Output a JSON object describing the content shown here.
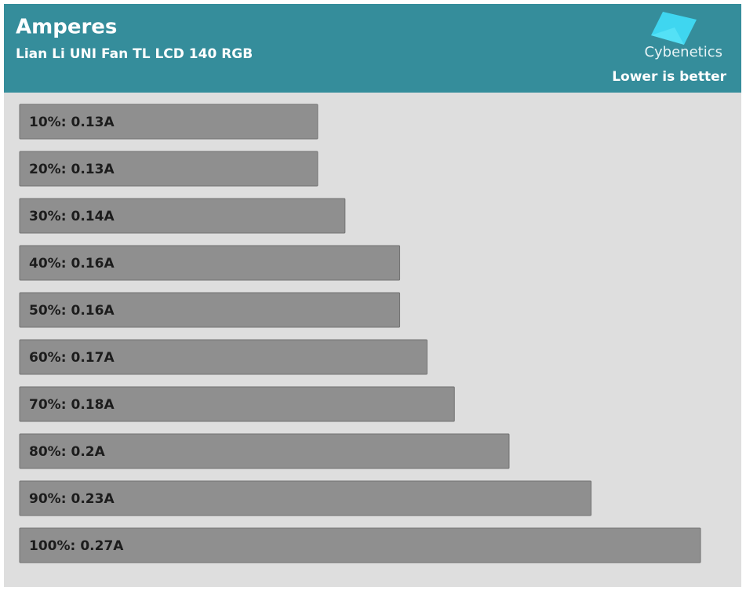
{
  "chart_data": {
    "type": "bar",
    "orientation": "horizontal",
    "title": "Amperes",
    "subtitle": "Lian Li UNI Fan TL LCD 140 RGB",
    "note": "Lower is better",
    "logo": "Cybenetics",
    "categories": [
      "10%:",
      "20%:",
      "30%:",
      "40%:",
      "50%:",
      "60%:",
      "70%:",
      "80%:",
      "90%:",
      "100%:"
    ],
    "values": [
      0.13,
      0.13,
      0.14,
      0.16,
      0.16,
      0.17,
      0.18,
      0.2,
      0.23,
      0.27
    ],
    "value_labels": [
      "0.13A",
      "0.13A",
      "0.14A",
      "0.16A",
      "0.16A",
      "0.17A",
      "0.18A",
      "0.2A",
      "0.23A",
      "0.27A"
    ],
    "color": "#8f8f8f",
    "xlim": [
      0.021,
      0.27
    ]
  }
}
